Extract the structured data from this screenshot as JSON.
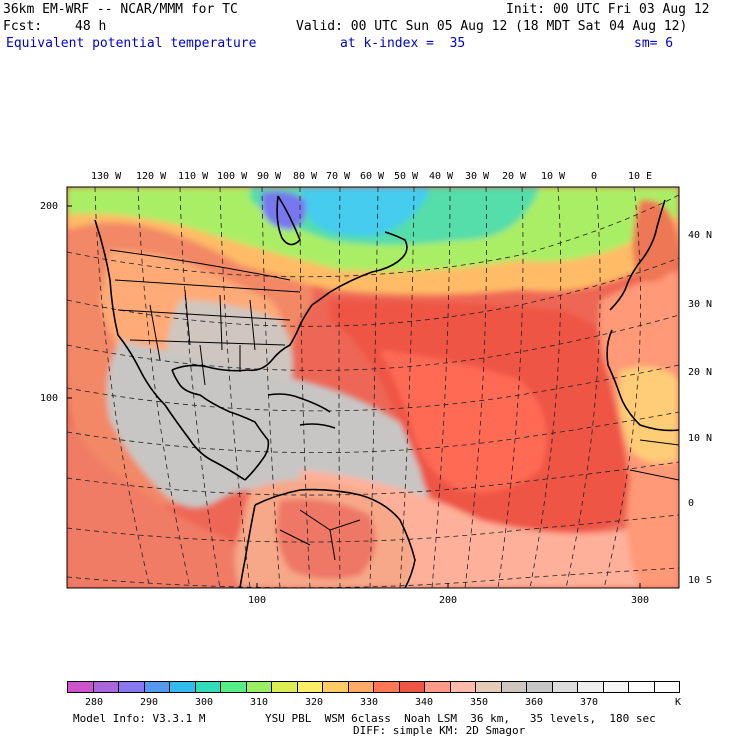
{
  "header": {
    "model_title": "36km EM-WRF -- NCAR/MMM for TC",
    "init": "Init: 00 UTC Fri 03 Aug 12",
    "fcst_label": "Fcst:",
    "fcst_value": "48 h",
    "valid": "Valid: 00 UTC Sun 05 Aug 12 (18 MDT Sat 04 Aug 12)",
    "field": "Equivalent potential temperature",
    "level": "at k-index =  35",
    "smoothing": "sm= 6"
  },
  "map": {
    "lon_labels": [
      "130 W",
      "120 W",
      "110 W",
      "100 W",
      "90 W",
      "80 W",
      "70 W",
      "60 W",
      "50 W",
      "40 W",
      "30 W",
      "20 W",
      "10 W",
      "0",
      "10 E"
    ],
    "lat_labels": [
      "40 N",
      "30 N",
      "20 N",
      "10 N",
      "0",
      "10 S"
    ],
    "grid_y_labels": [
      "200",
      "100"
    ],
    "grid_x_labels": [
      "100",
      "200",
      "300"
    ]
  },
  "colorbar": {
    "unit": "K",
    "tick_labels": [
      "280",
      "290",
      "300",
      "310",
      "320",
      "330",
      "340",
      "350",
      "360",
      "370"
    ],
    "colors": [
      "#cc55cc",
      "#aa66dd",
      "#8877ee",
      "#5599ee",
      "#33bbee",
      "#33ddbb",
      "#55ee88",
      "#99ee66",
      "#ddee55",
      "#ffee66",
      "#ffcc66",
      "#ffaa66",
      "#ff7755",
      "#ee5544",
      "#ff9988",
      "#ffbbaa",
      "#e5cbb5",
      "#d0c6c0",
      "#c6c6c6",
      "#dddddd",
      "#eeeeee",
      "#f6f6f6",
      "#ffffff",
      "#ffffff"
    ]
  },
  "footer": {
    "model_info": "Model Info: V3.3.1 M",
    "physics": "YSU PBL  WSM 6class  Noah LSM  36 km,   35 levels,  180 sec",
    "diffusion": "DIFF: simple KM: 2D Smagor"
  }
}
